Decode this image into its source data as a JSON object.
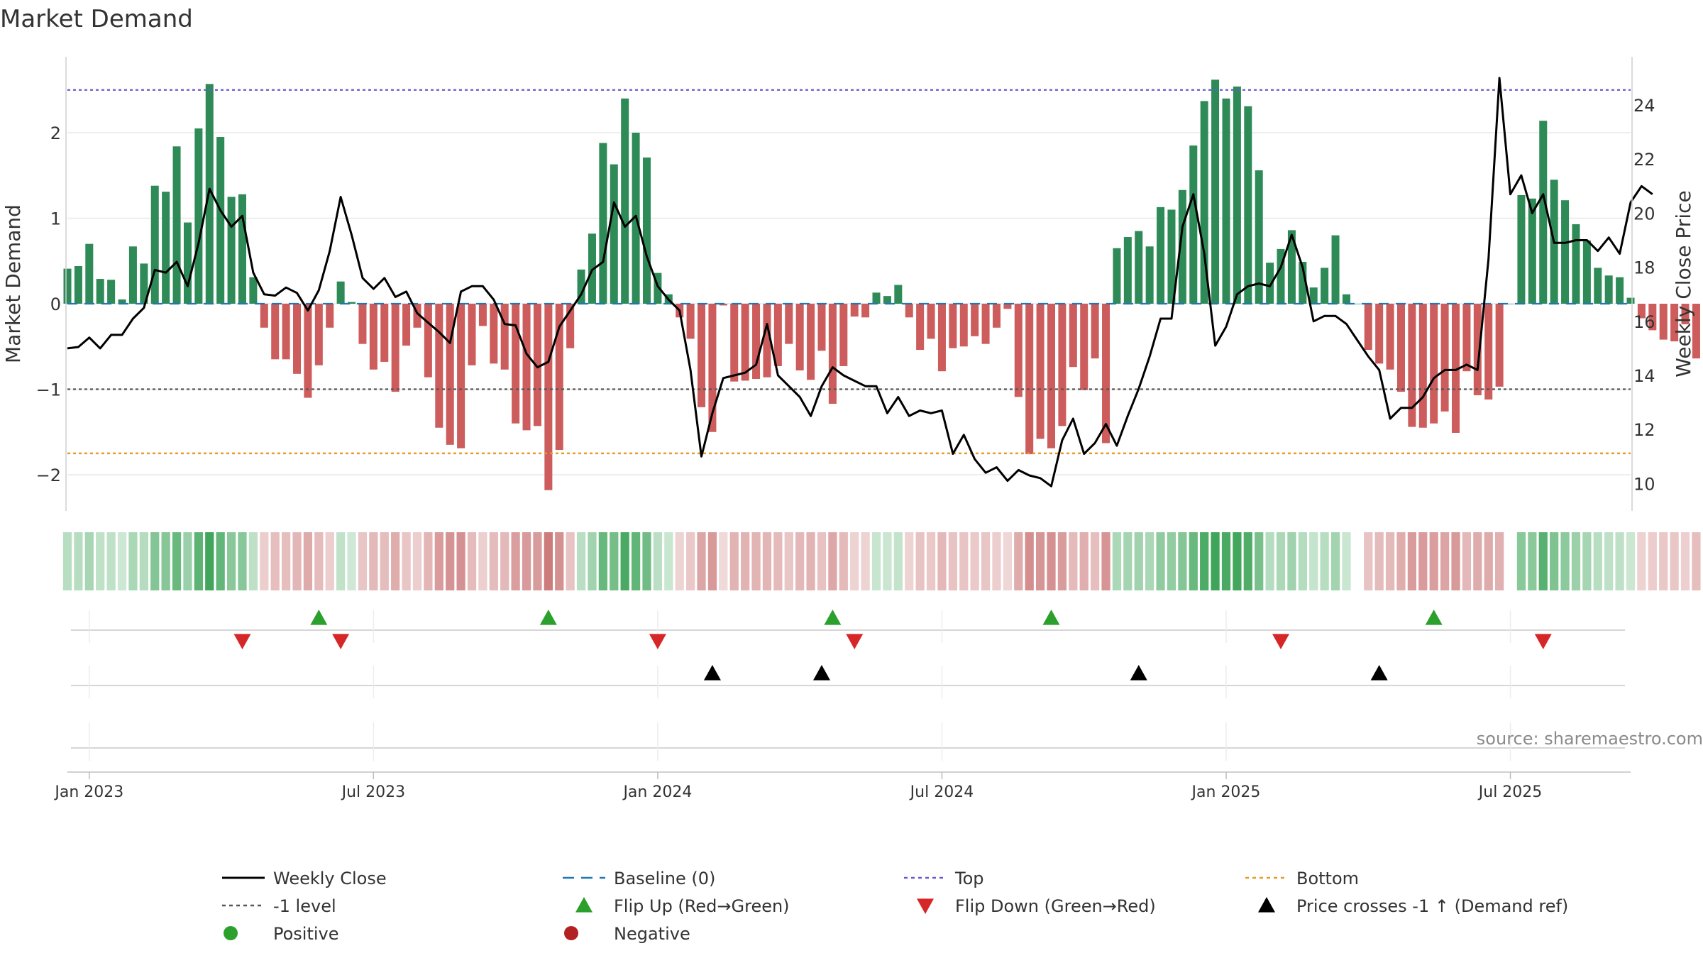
{
  "chart_data": {
    "type": "bar",
    "title": "Market Demand",
    "ylabel": "Market Demand",
    "y2label": "Weekly Close Price",
    "ylim": [
      -2.45,
      2.8
    ],
    "y2lim": [
      9.25,
      26.0
    ],
    "yticks": [
      -2,
      -1,
      0,
      1,
      2
    ],
    "y2ticks": [
      10,
      12,
      14,
      16,
      18,
      20,
      22,
      24
    ],
    "levels": {
      "top": 2.5,
      "minus_one": -1,
      "bottom": -1.75,
      "baseline": 0
    },
    "x_ticks": [
      {
        "label": "Jan 2023",
        "week": 2
      },
      {
        "label": "Jul 2023",
        "week": 28
      },
      {
        "label": "Jan 2024",
        "week": 54
      },
      {
        "label": "Jul 2024",
        "week": 80
      },
      {
        "label": "Jan 2025",
        "week": 106
      },
      {
        "label": "Jul 2025",
        "week": 132
      }
    ],
    "week_range": [
      0,
      143
    ],
    "demand": [
      0.41,
      0.44,
      0.7,
      0.29,
      0.28,
      0.05,
      0.67,
      0.47,
      1.38,
      1.31,
      1.84,
      0.95,
      2.05,
      2.57,
      1.95,
      1.25,
      1.28,
      0.31,
      -0.28,
      -0.65,
      -0.65,
      -0.82,
      -1.1,
      -0.72,
      -0.28,
      0.26,
      0.02,
      -0.47,
      -0.77,
      -0.68,
      -1.03,
      -0.49,
      -0.28,
      -0.86,
      -1.45,
      -1.65,
      -1.69,
      -0.72,
      -0.26,
      -0.7,
      -0.77,
      -1.4,
      -1.48,
      -1.43,
      -2.18,
      -1.71,
      -0.52,
      0.4,
      0.82,
      1.88,
      1.63,
      2.4,
      2.0,
      1.71,
      0.36,
      0.11,
      -0.16,
      -0.41,
      -1.21,
      -1.5,
      -0.02,
      -0.91,
      -0.9,
      -0.88,
      -0.86,
      -0.73,
      -0.47,
      -0.78,
      -0.89,
      -0.55,
      -1.17,
      -0.73,
      -0.15,
      -0.16,
      0.13,
      0.09,
      0.22,
      -0.16,
      -0.54,
      -0.41,
      -0.79,
      -0.52,
      -0.5,
      -0.38,
      -0.47,
      -0.28,
      -0.06,
      -1.09,
      -1.76,
      -1.58,
      -1.69,
      -1.43,
      -0.74,
      -1.01,
      -0.64,
      -1.63,
      0.65,
      0.78,
      0.85,
      0.67,
      1.13,
      1.1,
      1.33,
      1.85,
      2.37,
      2.62,
      2.4,
      2.54,
      2.31,
      1.56,
      0.48,
      0.64,
      0.86,
      0.49,
      0.19,
      0.42,
      0.8,
      0.11,
      0.0,
      -0.54,
      -0.7,
      -0.77,
      -1.03,
      -1.44,
      -1.45,
      -1.4,
      -1.26,
      -1.51,
      -0.79,
      -1.07,
      -1.12,
      -0.97,
      0.0,
      1.27,
      1.23,
      2.14,
      1.45,
      1.21,
      0.93,
      0.74,
      0.42,
      0.33,
      0.31,
      0.07,
      -0.17,
      -0.31,
      -0.42,
      -0.44,
      -0.24,
      -0.64
    ],
    "weekly_close": [
      15.0,
      15.05,
      15.4,
      15.0,
      15.5,
      15.5,
      16.1,
      16.5,
      17.9,
      17.8,
      18.2,
      17.3,
      18.9,
      20.9,
      20.1,
      19.5,
      19.9,
      17.8,
      17.0,
      16.95,
      17.25,
      17.05,
      16.4,
      17.15,
      18.6,
      20.6,
      19.2,
      17.6,
      17.2,
      17.6,
      16.9,
      17.1,
      16.3,
      15.95,
      15.6,
      15.2,
      17.1,
      17.3,
      17.3,
      16.8,
      15.9,
      15.85,
      14.8,
      14.3,
      14.5,
      15.8,
      16.4,
      17.0,
      17.9,
      18.2,
      20.4,
      19.5,
      19.9,
      18.4,
      17.3,
      16.8,
      16.4,
      14.2,
      11.0,
      12.6,
      13.9,
      14.0,
      14.1,
      14.4,
      15.9,
      14.0,
      13.6,
      13.2,
      12.5,
      13.6,
      14.3,
      14.0,
      13.8,
      13.6,
      13.6,
      12.6,
      13.2,
      12.5,
      12.7,
      12.6,
      12.7,
      11.1,
      11.8,
      10.9,
      10.4,
      10.6,
      10.1,
      10.5,
      10.3,
      10.2,
      9.9,
      11.6,
      12.4,
      11.1,
      11.5,
      12.2,
      11.4,
      12.5,
      13.5,
      14.7,
      16.1,
      16.1,
      19.5,
      20.7,
      18.5,
      15.1,
      15.8,
      17.0,
      17.3,
      17.4,
      17.3,
      18.0,
      19.2,
      18.0,
      16.0,
      16.2,
      16.2,
      15.9,
      15.3,
      14.7,
      14.2,
      12.4,
      12.8,
      12.8,
      13.2,
      13.9,
      14.2,
      14.2,
      14.4,
      14.2,
      18.3,
      25.0,
      20.7,
      21.4,
      20.0,
      20.7,
      18.9,
      18.9,
      19.0,
      19.0,
      18.6,
      19.1,
      18.5,
      20.4,
      21.0,
      20.7
    ],
    "flip_up_weeks": [
      23,
      44,
      70,
      90,
      125
    ],
    "flip_down_weeks": [
      16,
      25,
      54,
      72,
      111,
      135
    ],
    "price_cross_weeks": [
      59,
      69,
      98,
      120
    ],
    "source": "source: sharemaestro.com",
    "legend": [
      {
        "label": "Weekly Close",
        "symbol": "line-solid",
        "color": "#000000"
      },
      {
        "label": "Baseline (0)",
        "symbol": "line-dash",
        "color": "#1f77b4"
      },
      {
        "label": "Top",
        "symbol": "line-dot",
        "color": "#6a5acd"
      },
      {
        "label": "Bottom",
        "symbol": "line-dot",
        "color": "#e69a28"
      },
      {
        "label": "-1 level",
        "symbol": "line-dot",
        "color": "#555555"
      },
      {
        "label": "Flip Up (Red→Green)",
        "symbol": "triangle-up",
        "color": "#2ca02c"
      },
      {
        "label": "Flip Down (Green→Red)",
        "symbol": "triangle-down",
        "color": "#d62728"
      },
      {
        "label": "Price crosses -1 ↑ (Demand ref)",
        "symbol": "triangle-up",
        "color": "#000000"
      },
      {
        "label": "Positive",
        "symbol": "circle",
        "color": "#2ca02c"
      },
      {
        "label": "Negative",
        "symbol": "circle",
        "color": "#b22222"
      }
    ],
    "colors": {
      "positive_bar": "#2e8b57",
      "negative_bar": "#cd5c5c",
      "strip_positive": "#3fa55a",
      "strip_negative": "#c66a6a",
      "grid": "#e8e8e8",
      "axis": "#cfcfcf"
    }
  }
}
